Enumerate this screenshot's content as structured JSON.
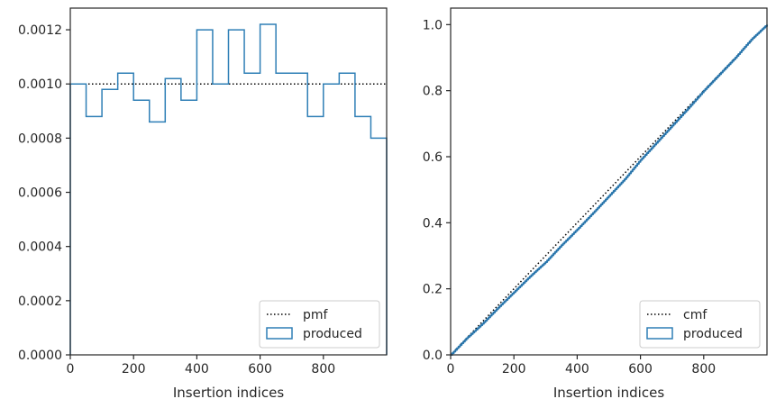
{
  "chart_data": [
    {
      "type": "step",
      "xlabel": "Insertion indices",
      "ylabel": "",
      "xlim": [
        0,
        1000
      ],
      "ylim": [
        0,
        0.00128
      ],
      "xticks": [
        0,
        200,
        400,
        600,
        800
      ],
      "xtick_labels": [
        "0",
        "200",
        "400",
        "600",
        "800"
      ],
      "yticks": [
        0,
        0.0002,
        0.0004,
        0.0006,
        0.0008,
        0.001,
        0.0012
      ],
      "ytick_labels": [
        "0.0000",
        "0.0002",
        "0.0004",
        "0.0006",
        "0.0008",
        "0.0010",
        "0.0012"
      ],
      "reference": {
        "name": "pmf",
        "value": 0.001
      },
      "series": [
        {
          "name": "produced",
          "bin_edges": [
            0,
            50,
            100,
            150,
            200,
            250,
            300,
            350,
            400,
            450,
            500,
            550,
            600,
            650,
            700,
            750,
            800,
            850,
            900,
            950,
            1000
          ],
          "values": [
            0.001,
            0.00088,
            0.00098,
            0.00104,
            0.00094,
            0.00086,
            0.00102,
            0.00094,
            0.0012,
            0.001,
            0.0012,
            0.00104,
            0.00122,
            0.00104,
            0.00104,
            0.00088,
            0.001,
            0.00104,
            0.00088,
            0.0008
          ]
        }
      ],
      "legend": {
        "position": "lower-right",
        "entries": [
          "pmf",
          "produced"
        ]
      }
    },
    {
      "type": "step",
      "xlabel": "Insertion indices",
      "ylabel": "",
      "xlim": [
        0,
        1000
      ],
      "ylim": [
        0,
        1.05
      ],
      "xticks": [
        0,
        200,
        400,
        600,
        800
      ],
      "xtick_labels": [
        "0",
        "200",
        "400",
        "600",
        "800"
      ],
      "yticks": [
        0,
        0.2,
        0.4,
        0.6,
        0.8,
        1.0
      ],
      "ytick_labels": [
        "0.0",
        "0.2",
        "0.4",
        "0.6",
        "0.8",
        "1.0"
      ],
      "reference": {
        "name": "cmf",
        "x": [
          0,
          1000
        ],
        "y": [
          0,
          1
        ]
      },
      "series": [
        {
          "name": "produced",
          "x": [
            0,
            50,
            100,
            150,
            200,
            250,
            300,
            350,
            400,
            450,
            500,
            550,
            600,
            650,
            700,
            750,
            800,
            850,
            900,
            950,
            1000
          ],
          "y": [
            0,
            0.05,
            0.094,
            0.143,
            0.19,
            0.237,
            0.281,
            0.332,
            0.38,
            0.43,
            0.481,
            0.532,
            0.59,
            0.642,
            0.694,
            0.746,
            0.8,
            0.85,
            0.9,
            0.955,
            1.0
          ]
        }
      ],
      "legend": {
        "position": "lower-right",
        "entries": [
          "cmf",
          "produced"
        ]
      }
    }
  ]
}
